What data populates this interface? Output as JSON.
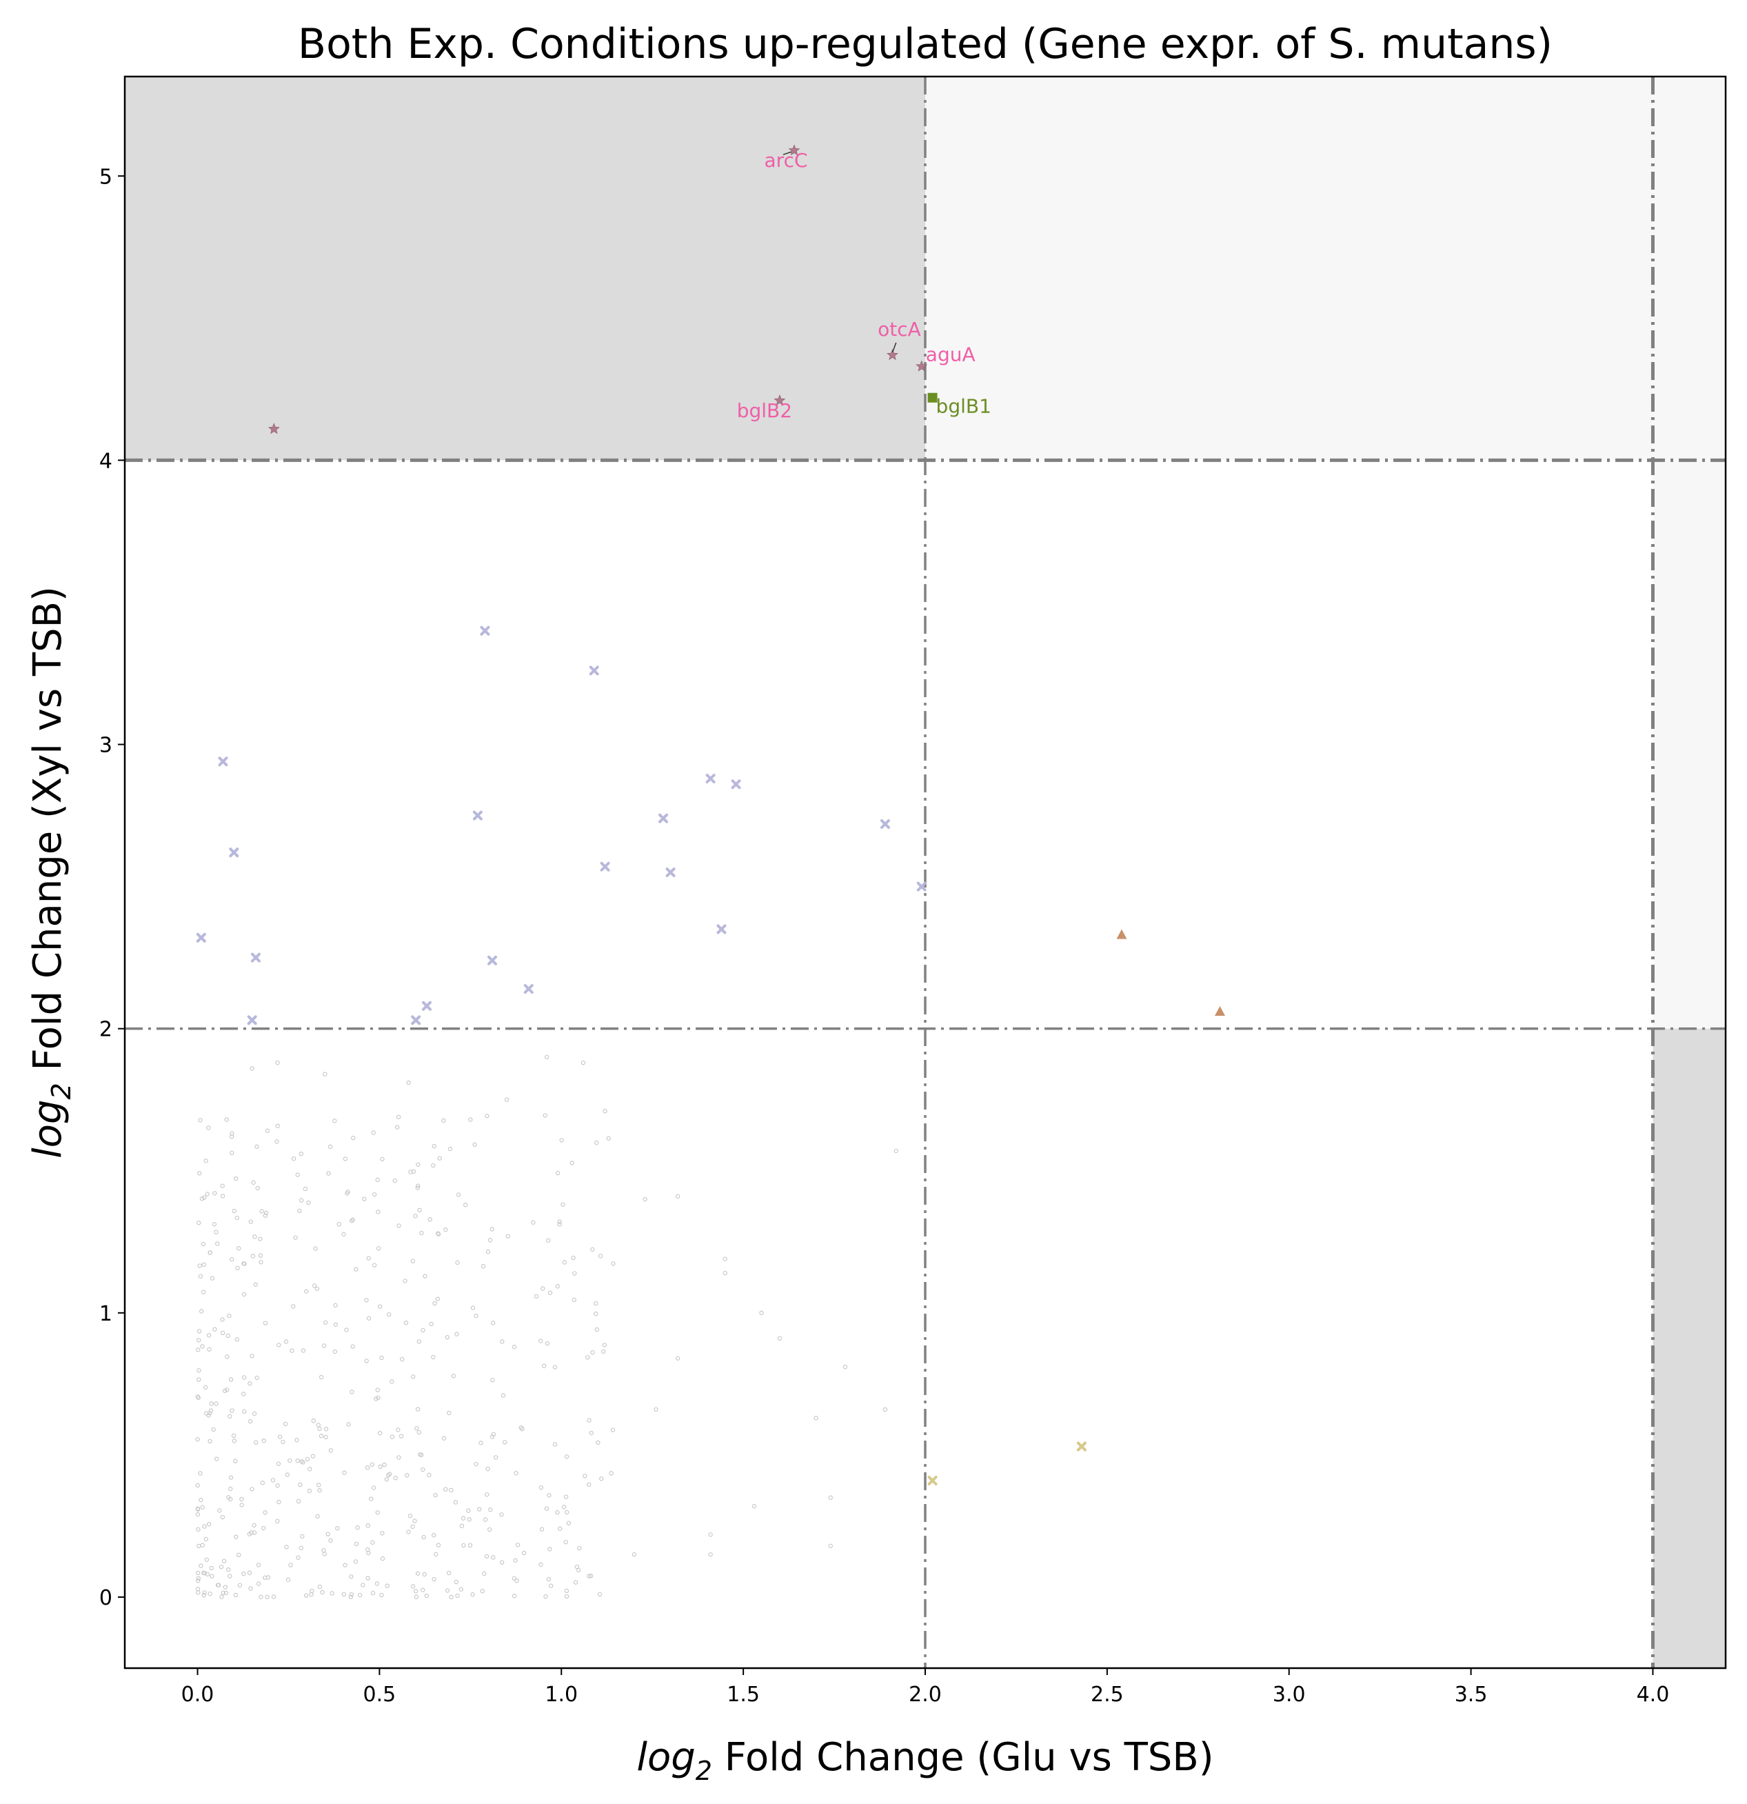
{
  "chart_data": {
    "type": "scatter",
    "title": "Both Exp. Conditions up-regulated (Gene expr. of S. mutans)",
    "xlabel": {
      "italic_part": "log",
      "subscript": "2",
      "rest": " Fold Change (Glu vs TSB)"
    },
    "ylabel": {
      "italic_part": "log",
      "subscript": "2",
      "rest": " Fold Change (Xyl vs TSB)"
    },
    "xlim": [
      -0.2,
      4.2
    ],
    "ylim": [
      -0.25,
      5.35
    ],
    "x_ticks": [
      0.0,
      0.5,
      1.0,
      1.5,
      2.0,
      2.5,
      3.0,
      3.5,
      4.0
    ],
    "x_tick_labels": [
      "0.0",
      "0.5",
      "1.0",
      "1.5",
      "2.0",
      "2.5",
      "3.0",
      "3.5",
      "4.0"
    ],
    "y_ticks": [
      0,
      1,
      2,
      3,
      4,
      5
    ],
    "y_tick_labels": [
      "0",
      "1",
      "2",
      "3",
      "4",
      "5"
    ],
    "grid": false,
    "regions": [
      {
        "x": [
          -0.2,
          2.0
        ],
        "y": [
          4.0,
          5.35
        ],
        "color": "#dcdcdc"
      },
      {
        "x": [
          2.0,
          4.2
        ],
        "y": [
          4.0,
          5.35
        ],
        "color": "#f7f7f7"
      },
      {
        "x": [
          4.0,
          4.2
        ],
        "y": [
          2.0,
          4.0
        ],
        "color": "#f7f7f7"
      },
      {
        "x": [
          4.0,
          4.2
        ],
        "y": [
          -0.25,
          2.0
        ],
        "color": "#dcdcdc"
      }
    ],
    "threshold_lines": {
      "vertical": [
        2.0,
        4.0
      ],
      "horizontal": [
        2.0,
        4.0
      ],
      "color": "#808080",
      "style": "dash-dot"
    },
    "series": [
      {
        "marker": "star",
        "color": "#b07a8f",
        "points": [
          {
            "x": 1.64,
            "y": 5.09,
            "label": "arcC"
          },
          {
            "x": 1.91,
            "y": 4.37,
            "label": "otcA"
          },
          {
            "x": 1.99,
            "y": 4.33,
            "label": "aguA"
          },
          {
            "x": 1.6,
            "y": 4.21,
            "label": "bglB2"
          },
          {
            "x": 0.21,
            "y": 4.11
          }
        ]
      },
      {
        "marker": "square",
        "color": "#6b8e23",
        "points": [
          {
            "x": 2.02,
            "y": 4.22,
            "label": "bglB1"
          }
        ]
      },
      {
        "marker": "x",
        "color": "#b8b8dc",
        "points": [
          {
            "x": 0.79,
            "y": 3.4
          },
          {
            "x": 1.09,
            "y": 3.26
          },
          {
            "x": 0.07,
            "y": 2.94
          },
          {
            "x": 1.41,
            "y": 2.88
          },
          {
            "x": 1.48,
            "y": 2.86
          },
          {
            "x": 0.77,
            "y": 2.75
          },
          {
            "x": 1.28,
            "y": 2.74
          },
          {
            "x": 1.89,
            "y": 2.72
          },
          {
            "x": 0.1,
            "y": 2.62
          },
          {
            "x": 1.12,
            "y": 2.57
          },
          {
            "x": 1.3,
            "y": 2.55
          },
          {
            "x": 1.99,
            "y": 2.5
          },
          {
            "x": 1.44,
            "y": 2.35
          },
          {
            "x": 0.01,
            "y": 2.32
          },
          {
            "x": 0.16,
            "y": 2.25
          },
          {
            "x": 0.81,
            "y": 2.24
          },
          {
            "x": 0.91,
            "y": 2.14
          },
          {
            "x": 0.63,
            "y": 2.08
          },
          {
            "x": 0.15,
            "y": 2.03
          },
          {
            "x": 0.6,
            "y": 2.03
          }
        ]
      },
      {
        "marker": "triangle",
        "color": "#c8906a",
        "points": [
          {
            "x": 2.54,
            "y": 2.33
          },
          {
            "x": 2.81,
            "y": 2.06
          }
        ]
      },
      {
        "marker": "x",
        "color": "#d6c98a",
        "points": [
          {
            "x": 2.43,
            "y": 0.53
          },
          {
            "x": 2.02,
            "y": 0.41
          }
        ]
      }
    ],
    "background_points": {
      "marker": "circle-open",
      "color": "#c8c8c8",
      "count": 500,
      "x_range": [
        0.0,
        1.95
      ],
      "y_range": [
        0.0,
        1.95
      ],
      "note_points": [
        {
          "x": 1.92,
          "y": 1.57
        },
        {
          "x": 1.89,
          "y": 0.66
        },
        {
          "x": 1.78,
          "y": 0.81
        },
        {
          "x": 1.74,
          "y": 0.35
        },
        {
          "x": 1.74,
          "y": 0.18
        },
        {
          "x": 1.7,
          "y": 0.63
        },
        {
          "x": 1.6,
          "y": 0.91
        },
        {
          "x": 1.55,
          "y": 1.0
        },
        {
          "x": 1.53,
          "y": 0.32
        },
        {
          "x": 1.45,
          "y": 1.19
        },
        {
          "x": 1.45,
          "y": 1.14
        },
        {
          "x": 1.41,
          "y": 0.22
        },
        {
          "x": 1.41,
          "y": 0.15
        },
        {
          "x": 1.32,
          "y": 1.41
        },
        {
          "x": 1.32,
          "y": 0.84
        },
        {
          "x": 1.23,
          "y": 1.4
        },
        {
          "x": 1.26,
          "y": 0.66
        },
        {
          "x": 1.2,
          "y": 0.15
        },
        {
          "x": 1.12,
          "y": 1.71
        },
        {
          "x": 1.06,
          "y": 1.88
        },
        {
          "x": 0.96,
          "y": 1.9
        },
        {
          "x": 0.85,
          "y": 1.75
        },
        {
          "x": 0.75,
          "y": 1.68
        },
        {
          "x": 0.58,
          "y": 1.81
        },
        {
          "x": 0.35,
          "y": 1.84
        },
        {
          "x": 0.22,
          "y": 1.88
        },
        {
          "x": 0.15,
          "y": 1.86
        },
        {
          "x": 0.08,
          "y": 1.68
        }
      ]
    }
  }
}
